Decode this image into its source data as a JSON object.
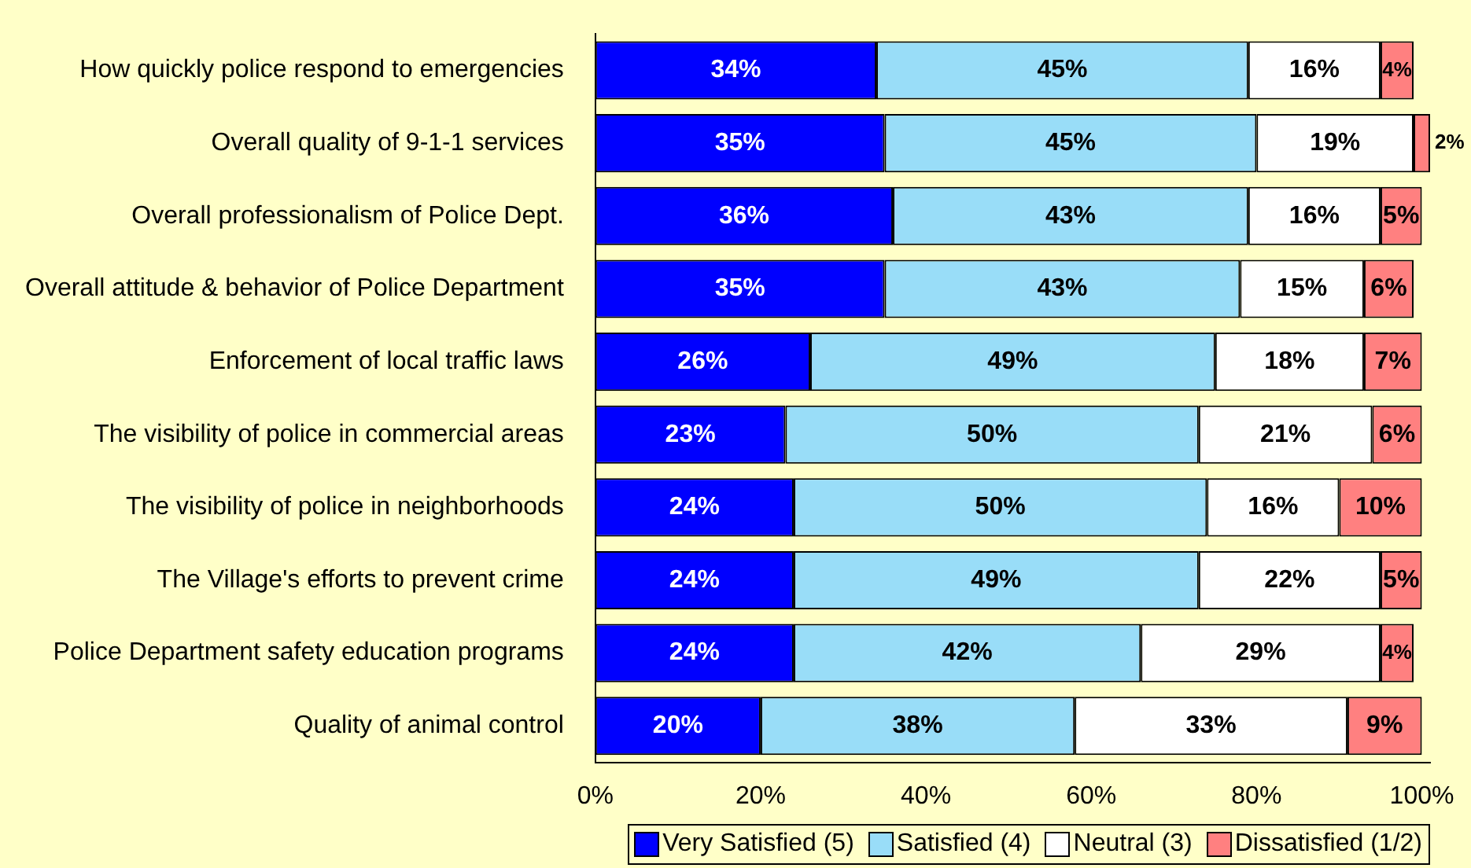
{
  "chart_data": {
    "type": "bar",
    "orientation": "horizontal",
    "stacked": true,
    "categories": [
      "How quickly police respond to emergencies",
      "Overall quality of 9-1-1 services",
      "Overall professionalism of Police Dept.",
      "Overall attitude & behavior of Police Department",
      "Enforcement of local traffic laws",
      "The visibility of police in commercial areas",
      "The visibility of police in neighborhoods",
      "The Village's efforts to prevent crime",
      "Police Department safety education programs",
      "Quality of animal control"
    ],
    "series": [
      {
        "name": "Very Satisfied (5)",
        "color": "#0000ff",
        "values": [
          34,
          35,
          36,
          35,
          26,
          23,
          24,
          24,
          24,
          20
        ],
        "value_labels": [
          "34%",
          "35%",
          "36%",
          "35%",
          "26%",
          "23%",
          "24%",
          "24%",
          "24%",
          "20%"
        ]
      },
      {
        "name": "Satisfied (4)",
        "color": "#99ddf8",
        "values": [
          45,
          45,
          43,
          43,
          49,
          50,
          50,
          49,
          42,
          38
        ],
        "value_labels": [
          "45%",
          "45%",
          "43%",
          "43%",
          "49%",
          "50%",
          "50%",
          "49%",
          "42%",
          "38%"
        ]
      },
      {
        "name": "Neutral (3)",
        "color": "#ffffff",
        "values": [
          16,
          19,
          16,
          15,
          18,
          21,
          16,
          22,
          29,
          33
        ],
        "value_labels": [
          "16%",
          "19%",
          "16%",
          "15%",
          "18%",
          "21%",
          "16%",
          "22%",
          "29%",
          "33%"
        ]
      },
      {
        "name": "Dissatisfied (1/2)",
        "color": "#ff8080",
        "values": [
          4,
          2,
          5,
          6,
          7,
          6,
          10,
          5,
          4,
          9
        ],
        "value_labels": [
          "4%",
          "2%",
          "5%",
          "6%",
          "7%",
          "6%",
          "10%",
          "5%",
          "4%",
          "9%"
        ]
      }
    ],
    "xlim": [
      0,
      101
    ],
    "xticks": [
      {
        "value": 0,
        "label": "0%"
      },
      {
        "value": 20,
        "label": "20%"
      },
      {
        "value": 40,
        "label": "40%"
      },
      {
        "value": 60,
        "label": "60%"
      },
      {
        "value": 80,
        "label": "80%"
      },
      {
        "value": 100,
        "label": "100%"
      }
    ],
    "grid": false,
    "legend": "bottom right"
  }
}
